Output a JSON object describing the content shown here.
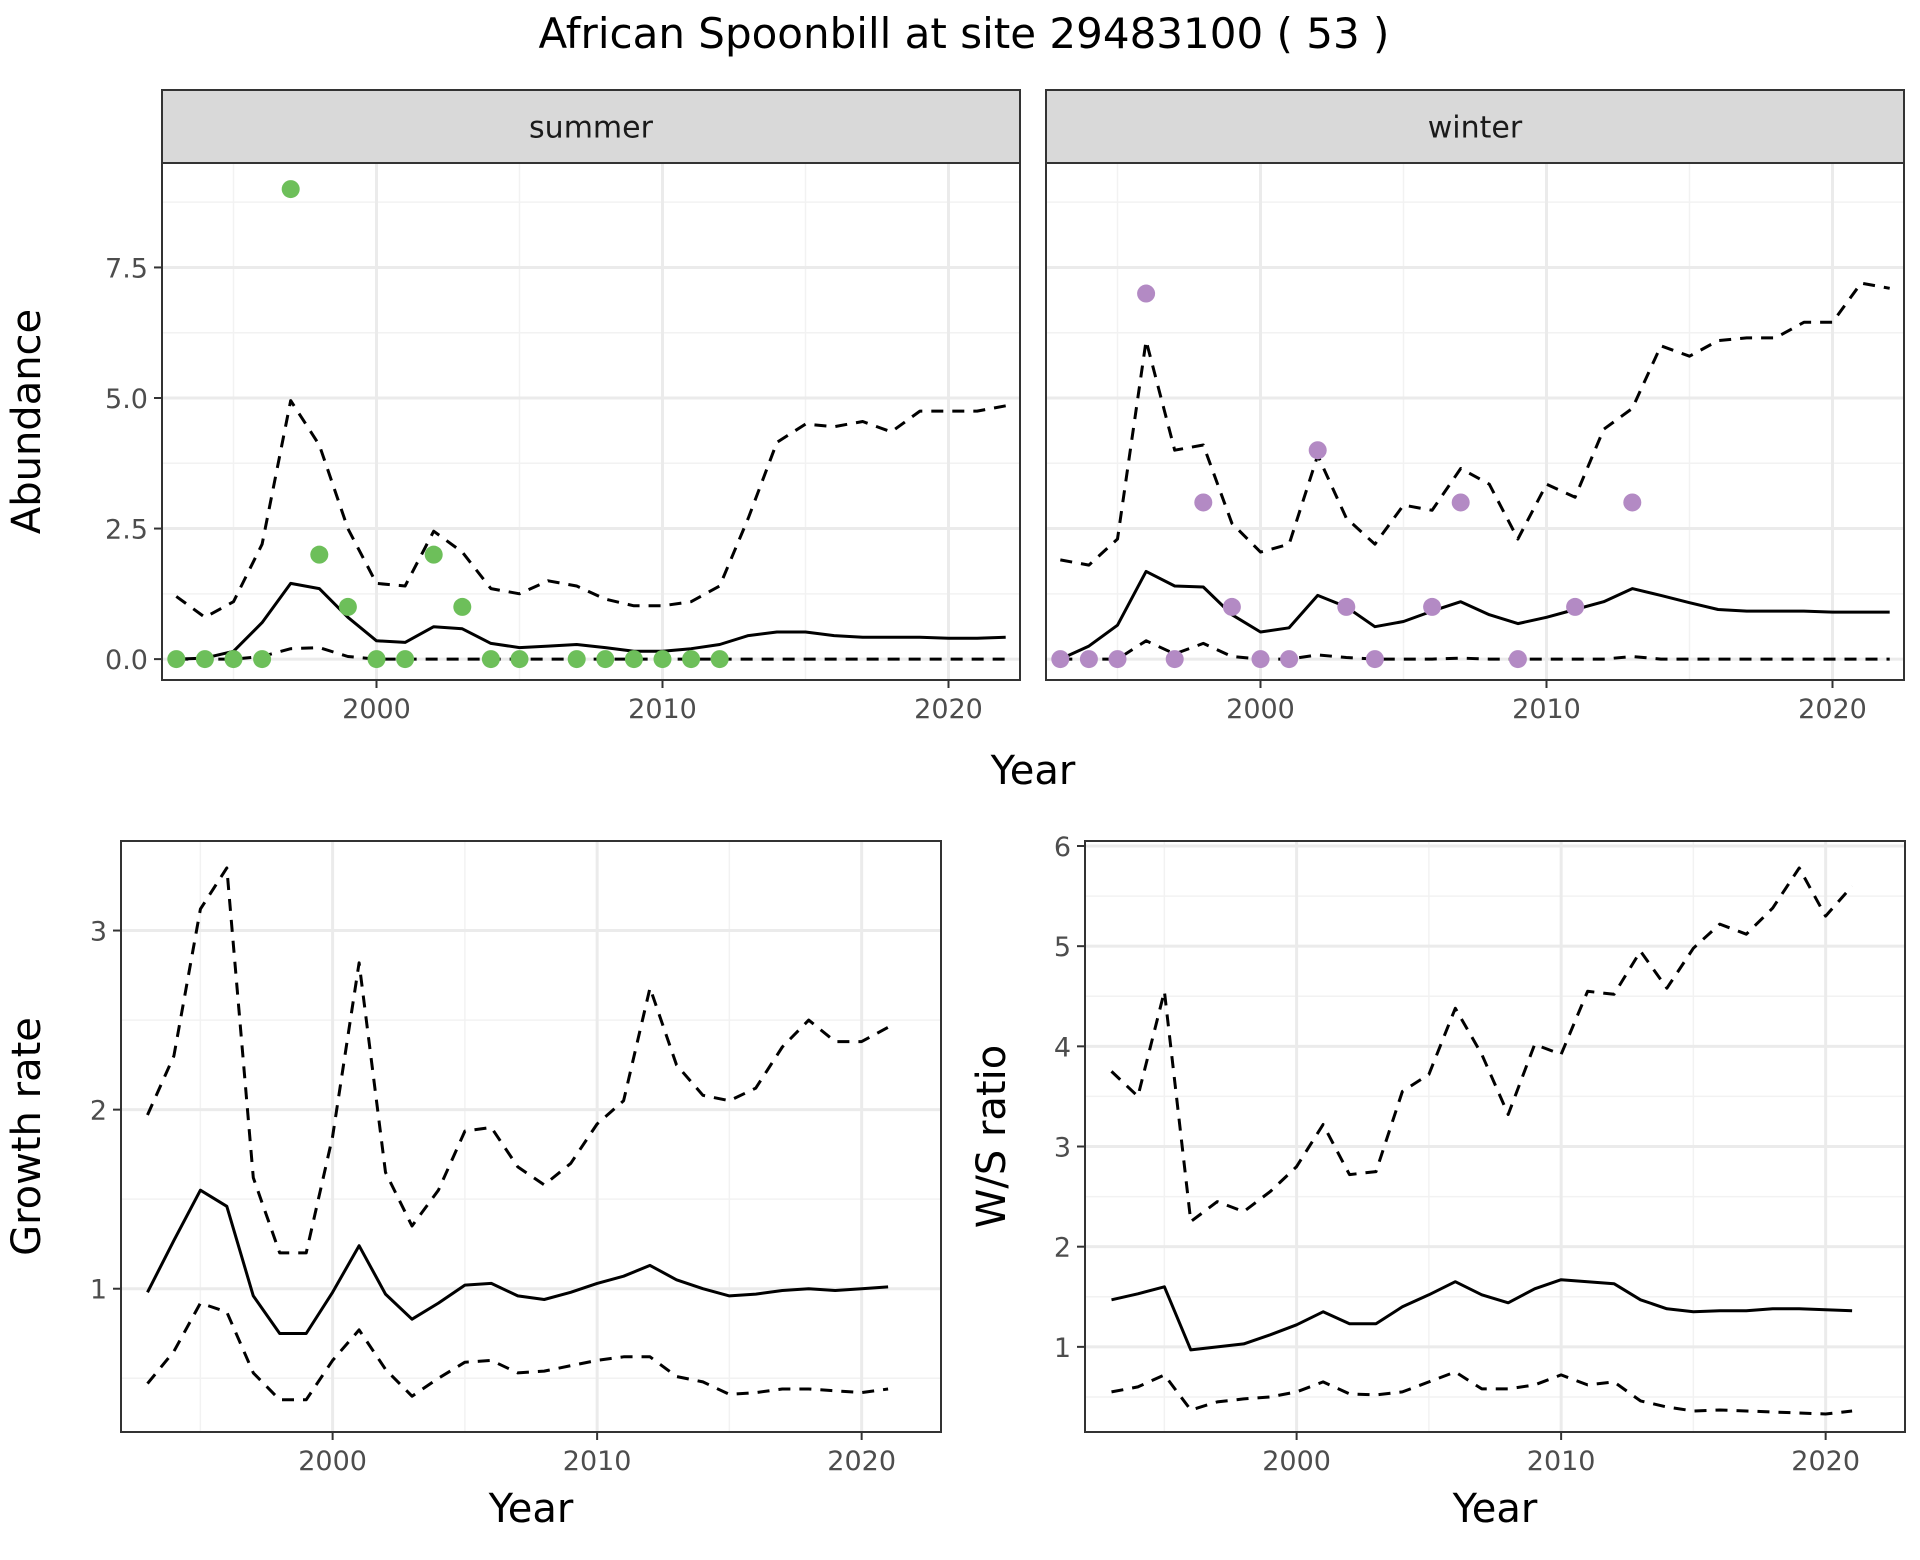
{
  "title": "African Spoonbill at site 29483100 ( 53 )",
  "chart_data": [
    {
      "type": "line",
      "panel": "summer",
      "strip_label": "summer",
      "xlabel": "Year",
      "ylabel": "Abundance",
      "xlim": [
        1992.5,
        2022.5
      ],
      "ylim": [
        -0.4,
        9.5
      ],
      "xticks": [
        2000,
        2010,
        2020
      ],
      "yticks": [
        0,
        2.5,
        5,
        7.5
      ],
      "ytick_labels": [
        "0.0",
        "2.5",
        "5.0",
        "7.5"
      ],
      "grid": true,
      "point_color": "#6dbf5a",
      "observed": {
        "x": [
          1993,
          1994,
          1995,
          1996,
          1997,
          1998,
          1999,
          2000,
          2001,
          2002,
          2003,
          2004,
          2005,
          2007,
          2008,
          2009,
          2010,
          2011,
          2012
        ],
        "y": [
          0,
          0,
          0,
          0,
          9,
          2,
          1,
          0,
          0,
          2,
          1,
          0,
          0,
          0,
          0,
          0,
          0,
          0,
          0
        ]
      },
      "series": [
        {
          "role": "mean",
          "style": "solid",
          "x": [
            1993,
            1994,
            1995,
            1996,
            1997,
            1998,
            1999,
            2000,
            2001,
            2002,
            2003,
            2004,
            2005,
            2006,
            2007,
            2008,
            2009,
            2010,
            2011,
            2012,
            2013,
            2014,
            2015,
            2016,
            2017,
            2018,
            2019,
            2020,
            2021,
            2022
          ],
          "y": [
            0,
            0.02,
            0.15,
            0.7,
            1.45,
            1.35,
            0.8,
            0.35,
            0.32,
            0.62,
            0.58,
            0.3,
            0.22,
            0.25,
            0.28,
            0.22,
            0.15,
            0.15,
            0.2,
            0.28,
            0.45,
            0.52,
            0.52,
            0.45,
            0.42,
            0.42,
            0.42,
            0.4,
            0.4,
            0.42
          ]
        },
        {
          "role": "upper",
          "style": "dashed",
          "x": [
            1993,
            1994,
            1995,
            1996,
            1997,
            1998,
            1999,
            2000,
            2001,
            2002,
            2003,
            2004,
            2005,
            2006,
            2007,
            2008,
            2009,
            2010,
            2011,
            2012,
            2013,
            2014,
            2015,
            2016,
            2017,
            2018,
            2019,
            2020,
            2021,
            2022
          ],
          "y": [
            1.2,
            0.8,
            1.1,
            2.2,
            4.95,
            4.1,
            2.5,
            1.45,
            1.4,
            2.45,
            2.05,
            1.35,
            1.25,
            1.5,
            1.4,
            1.15,
            1.02,
            1.02,
            1.1,
            1.4,
            2.7,
            4.15,
            4.5,
            4.45,
            4.55,
            4.35,
            4.75,
            4.75,
            4.75,
            4.85
          ]
        },
        {
          "role": "lower",
          "style": "dashed",
          "x": [
            1993,
            1994,
            1995,
            1996,
            1997,
            1998,
            1999,
            2000,
            2001,
            2002,
            2003,
            2004,
            2005,
            2006,
            2007,
            2008,
            2009,
            2010,
            2011,
            2012,
            2013,
            2014,
            2015,
            2016,
            2017,
            2018,
            2019,
            2020,
            2021,
            2022
          ],
          "y": [
            0,
            0,
            0,
            0.05,
            0.2,
            0.22,
            0.05,
            0,
            0,
            0,
            0,
            0,
            0,
            0,
            0,
            0,
            0,
            0,
            0,
            0,
            0,
            0,
            0,
            0,
            0,
            0,
            0,
            0,
            0,
            0
          ]
        }
      ]
    },
    {
      "type": "line",
      "panel": "winter",
      "strip_label": "winter",
      "xlabel": "Year",
      "ylabel": "Abundance",
      "xlim": [
        1992.5,
        2022.5
      ],
      "ylim": [
        -0.4,
        9.5
      ],
      "xticks": [
        2000,
        2010,
        2020
      ],
      "yticks": [
        0,
        2.5,
        5,
        7.5
      ],
      "grid": true,
      "point_color": "#b38ac4",
      "observed": {
        "x": [
          1993,
          1994,
          1995,
          1996,
          1997,
          1998,
          1999,
          2000,
          2001,
          2002,
          2003,
          2004,
          2006,
          2007,
          2009,
          2011,
          2013
        ],
        "y": [
          0,
          0,
          0,
          7,
          0,
          3,
          1,
          0,
          0,
          4,
          1,
          0,
          1,
          3,
          0,
          1,
          3
        ]
      },
      "series": [
        {
          "role": "mean",
          "style": "solid",
          "x": [
            1993,
            1994,
            1995,
            1996,
            1997,
            1998,
            1999,
            2000,
            2001,
            2002,
            2003,
            2004,
            2005,
            2006,
            2007,
            2008,
            2009,
            2010,
            2011,
            2012,
            2013,
            2014,
            2015,
            2016,
            2017,
            2018,
            2019,
            2020,
            2021,
            2022
          ],
          "y": [
            0,
            0.25,
            0.65,
            1.68,
            1.4,
            1.38,
            0.85,
            0.52,
            0.6,
            1.22,
            1.0,
            0.62,
            0.72,
            0.92,
            1.1,
            0.85,
            0.68,
            0.8,
            0.95,
            1.1,
            1.35,
            1.22,
            1.08,
            0.95,
            0.92,
            0.92,
            0.92,
            0.9,
            0.9,
            0.9
          ]
        },
        {
          "role": "upper",
          "style": "dashed",
          "x": [
            1993,
            1994,
            1995,
            1996,
            1997,
            1998,
            1999,
            2000,
            2001,
            2002,
            2003,
            2004,
            2005,
            2006,
            2007,
            2008,
            2009,
            2010,
            2011,
            2012,
            2013,
            2014,
            2015,
            2016,
            2017,
            2018,
            2019,
            2020,
            2021,
            2022
          ],
          "y": [
            1.9,
            1.8,
            2.3,
            6.1,
            4.0,
            4.1,
            2.6,
            2.05,
            2.2,
            3.9,
            2.7,
            2.2,
            2.95,
            2.85,
            3.65,
            3.35,
            2.3,
            3.35,
            3.1,
            4.4,
            4.8,
            6.0,
            5.8,
            6.1,
            6.15,
            6.15,
            6.45,
            6.45,
            7.2,
            7.1
          ]
        },
        {
          "role": "lower",
          "style": "dashed",
          "x": [
            1993,
            1994,
            1995,
            1996,
            1997,
            1998,
            1999,
            2000,
            2001,
            2002,
            2003,
            2004,
            2005,
            2006,
            2007,
            2008,
            2009,
            2010,
            2011,
            2012,
            2013,
            2014,
            2015,
            2016,
            2017,
            2018,
            2019,
            2020,
            2021,
            2022
          ],
          "y": [
            0,
            0,
            0,
            0.35,
            0.1,
            0.3,
            0.05,
            0,
            0,
            0.08,
            0.03,
            0,
            0,
            0,
            0.02,
            0,
            0,
            0,
            0,
            0,
            0.05,
            0,
            0,
            0,
            0,
            0,
            0,
            0,
            0,
            0
          ]
        }
      ]
    },
    {
      "type": "line",
      "panel": "growth",
      "xlabel": "Year",
      "ylabel": "Growth rate",
      "xlim": [
        1992,
        2023
      ],
      "ylim": [
        0.2,
        3.5
      ],
      "xticks": [
        2000,
        2010,
        2020
      ],
      "yticks": [
        1,
        2,
        3
      ],
      "grid": true,
      "series": [
        {
          "role": "mean",
          "style": "solid",
          "x": [
            1993,
            1994,
            1995,
            1996,
            1997,
            1998,
            1999,
            2000,
            2001,
            2002,
            2003,
            2004,
            2005,
            2006,
            2007,
            2008,
            2009,
            2010,
            2011,
            2012,
            2013,
            2014,
            2015,
            2016,
            2017,
            2018,
            2019,
            2020,
            2021
          ],
          "y": [
            0.98,
            1.27,
            1.55,
            1.46,
            0.96,
            0.75,
            0.75,
            0.98,
            1.24,
            0.97,
            0.83,
            0.92,
            1.02,
            1.03,
            0.96,
            0.94,
            0.98,
            1.03,
            1.07,
            1.13,
            1.05,
            1.0,
            0.96,
            0.97,
            0.99,
            1.0,
            0.99,
            1.0,
            1.01
          ]
        },
        {
          "role": "upper",
          "style": "dashed",
          "x": [
            1993,
            1994,
            1995,
            1996,
            1997,
            1998,
            1999,
            2000,
            2001,
            2002,
            2003,
            2004,
            2005,
            2006,
            2007,
            2008,
            2009,
            2010,
            2011,
            2012,
            2013,
            2014,
            2015,
            2016,
            2017,
            2018,
            2019,
            2020,
            2021
          ],
          "y": [
            1.97,
            2.3,
            3.12,
            3.35,
            1.62,
            1.2,
            1.2,
            1.85,
            2.82,
            1.65,
            1.35,
            1.55,
            1.88,
            1.9,
            1.68,
            1.58,
            1.7,
            1.92,
            2.05,
            2.68,
            2.25,
            2.08,
            2.05,
            2.12,
            2.35,
            2.5,
            2.38,
            2.38,
            2.46
          ]
        },
        {
          "role": "lower",
          "style": "dashed",
          "x": [
            1993,
            1994,
            1995,
            1996,
            1997,
            1998,
            1999,
            2000,
            2001,
            2002,
            2003,
            2004,
            2005,
            2006,
            2007,
            2008,
            2009,
            2010,
            2011,
            2012,
            2013,
            2014,
            2015,
            2016,
            2017,
            2018,
            2019,
            2020,
            2021
          ],
          "y": [
            0.47,
            0.65,
            0.92,
            0.87,
            0.53,
            0.38,
            0.38,
            0.6,
            0.77,
            0.55,
            0.4,
            0.5,
            0.59,
            0.6,
            0.53,
            0.54,
            0.57,
            0.6,
            0.62,
            0.62,
            0.51,
            0.48,
            0.41,
            0.42,
            0.44,
            0.44,
            0.43,
            0.42,
            0.44
          ]
        }
      ]
    },
    {
      "type": "line",
      "panel": "ws_ratio",
      "xlabel": "Year",
      "ylabel": "W/S ratio",
      "xlim": [
        1992,
        2023
      ],
      "ylim": [
        0.15,
        6.05
      ],
      "xticks": [
        2000,
        2010,
        2020
      ],
      "yticks": [
        1,
        2,
        3,
        4,
        5,
        6
      ],
      "grid": true,
      "series": [
        {
          "role": "mean",
          "style": "solid",
          "x": [
            1993,
            1994,
            1995,
            1996,
            1997,
            1998,
            1999,
            2000,
            2001,
            2002,
            2003,
            2004,
            2005,
            2006,
            2007,
            2008,
            2009,
            2010,
            2011,
            2012,
            2013,
            2014,
            2015,
            2016,
            2017,
            2018,
            2019,
            2020,
            2021
          ],
          "y": [
            1.47,
            1.53,
            1.6,
            0.97,
            1.0,
            1.03,
            1.12,
            1.22,
            1.35,
            1.23,
            1.23,
            1.4,
            1.52,
            1.65,
            1.52,
            1.44,
            1.58,
            1.67,
            1.65,
            1.63,
            1.47,
            1.38,
            1.35,
            1.36,
            1.36,
            1.38,
            1.38,
            1.37,
            1.36
          ]
        },
        {
          "role": "upper",
          "style": "dashed",
          "x": [
            1993,
            1994,
            1995,
            1996,
            1997,
            1998,
            1999,
            2000,
            2001,
            2002,
            2003,
            2004,
            2005,
            2006,
            2007,
            2008,
            2009,
            2010,
            2011,
            2012,
            2013,
            2014,
            2015,
            2016,
            2017,
            2018,
            2019,
            2020,
            2021
          ],
          "y": [
            3.75,
            3.5,
            4.55,
            2.25,
            2.45,
            2.35,
            2.55,
            2.8,
            3.22,
            2.72,
            2.75,
            3.55,
            3.72,
            4.38,
            3.92,
            3.32,
            4.02,
            3.92,
            4.55,
            4.52,
            4.95,
            4.58,
            4.98,
            5.22,
            5.12,
            5.38,
            5.78,
            5.3,
            5.6
          ]
        },
        {
          "role": "lower",
          "style": "dashed",
          "x": [
            1993,
            1994,
            1995,
            1996,
            1997,
            1998,
            1999,
            2000,
            2001,
            2002,
            2003,
            2004,
            2005,
            2006,
            2007,
            2008,
            2009,
            2010,
            2011,
            2012,
            2013,
            2014,
            2015,
            2016,
            2017,
            2018,
            2019,
            2020,
            2021
          ],
          "y": [
            0.55,
            0.6,
            0.72,
            0.37,
            0.45,
            0.48,
            0.5,
            0.55,
            0.65,
            0.53,
            0.52,
            0.55,
            0.65,
            0.75,
            0.58,
            0.58,
            0.62,
            0.72,
            0.62,
            0.65,
            0.46,
            0.4,
            0.36,
            0.37,
            0.36,
            0.35,
            0.34,
            0.33,
            0.36
          ]
        }
      ]
    }
  ]
}
